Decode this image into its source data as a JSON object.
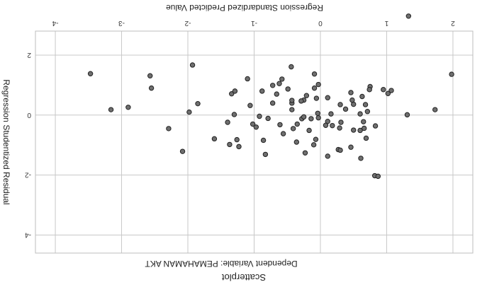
{
  "chart_data": {
    "type": "scatter",
    "title": "Scatterplot",
    "subtitle": "Dependent Variable: PEMAHAMAN AKT",
    "xlabel": "Regression Standardized Predicted Value",
    "ylabel": "Regression Studentized Residual",
    "xlim": [
      -4.3,
      2.3
    ],
    "ylim": [
      -4.6,
      2.8
    ],
    "xticks": [
      -4,
      -3,
      -2,
      -1,
      0,
      1,
      2
    ],
    "yticks": [
      -4,
      -2,
      0,
      2
    ],
    "xtick_labels": [
      "-4",
      "-3",
      "-2",
      "-1",
      "0",
      "1",
      "2"
    ],
    "ytick_labels": [
      "-4",
      "-2",
      "0",
      "2"
    ],
    "grid": true,
    "points": [
      {
        "x": 1.98,
        "y": 1.36
      },
      {
        "x": 1.73,
        "y": 0.18
      },
      {
        "x": 1.02,
        "y": 0.72
      },
      {
        "x": 0.75,
        "y": 0.95
      },
      {
        "x": 0.74,
        "y": 0.85
      },
      {
        "x": 0.27,
        "y": -1.15
      },
      {
        "x": -0.43,
        "y": 0.18
      },
      {
        "x": 0.5,
        "y": 0.36
      },
      {
        "x": -0.28,
        "y": -0.12
      },
      {
        "x": 0.83,
        "y": -0.36
      },
      {
        "x": -0.21,
        "y": 0.65
      },
      {
        "x": 0.11,
        "y": -1.37
      },
      {
        "x": 0.61,
        "y": -1.44
      },
      {
        "x": 0.31,
        "y": -0.24
      },
      {
        "x": 0.6,
        "y": -0.51
      },
      {
        "x": 0.46,
        "y": -1.07
      },
      {
        "x": 0.82,
        "y": -2.02
      },
      {
        "x": -0.25,
        "y": -0.06
      },
      {
        "x": 0.16,
        "y": 0.04
      },
      {
        "x": -0.03,
        "y": -0.09
      },
      {
        "x": -0.09,
        "y": 1.37
      },
      {
        "x": -0.1,
        "y": -0.99
      },
      {
        "x": 0.3,
        "y": -1.17
      },
      {
        "x": 0.87,
        "y": -2.04
      },
      {
        "x": 0.5,
        "y": -0.5
      },
      {
        "x": 0.38,
        "y": 0.2
      },
      {
        "x": -0.35,
        "y": -0.3
      },
      {
        "x": 0.66,
        "y": -0.44
      },
      {
        "x": 0.71,
        "y": 0.12
      },
      {
        "x": 0.6,
        "y": 0.04
      },
      {
        "x": -0.92,
        "y": -0.04
      },
      {
        "x": -1.02,
        "y": -0.3
      },
      {
        "x": -1.06,
        "y": 0.32
      },
      {
        "x": -1.23,
        "y": -1.05
      },
      {
        "x": -0.36,
        "y": -0.9
      },
      {
        "x": -0.17,
        "y": -0.51
      },
      {
        "x": -0.66,
        "y": 0.7
      },
      {
        "x": -0.88,
        "y": 0.8
      },
      {
        "x": -0.86,
        "y": -0.84
      },
      {
        "x": 0.69,
        "y": -0.77
      },
      {
        "x": -0.97,
        "y": -0.4
      },
      {
        "x": 0.63,
        "y": 0.62
      },
      {
        "x": 0.95,
        "y": 0.85
      },
      {
        "x": -0.23,
        "y": -1.26
      },
      {
        "x": -0.04,
        "y": 0.06
      },
      {
        "x": -0.14,
        "y": -0.12
      },
      {
        "x": -0.03,
        "y": 1.02
      },
      {
        "x": -0.61,
        "y": -0.32
      },
      {
        "x": 0.48,
        "y": 0.5
      },
      {
        "x": 0.65,
        "y": -0.22
      },
      {
        "x": 0.29,
        "y": -0.43
      },
      {
        "x": 0.11,
        "y": -0.21
      },
      {
        "x": 1.07,
        "y": 0.82
      },
      {
        "x": -0.43,
        "y": 0.4
      },
      {
        "x": 0.3,
        "y": 0.35
      },
      {
        "x": -0.25,
        "y": 0.5
      },
      {
        "x": -0.07,
        "y": -0.81
      },
      {
        "x": -0.41,
        "y": -0.45
      },
      {
        "x": 0.68,
        "y": 0.35
      },
      {
        "x": -0.09,
        "y": 0.9
      },
      {
        "x": 0.08,
        "y": -0.34
      },
      {
        "x": -0.72,
        "y": 0.4
      },
      {
        "x": -1.26,
        "y": -0.82
      },
      {
        "x": -2.08,
        "y": -1.21
      },
      {
        "x": -0.06,
        "y": 0.56
      },
      {
        "x": -1.1,
        "y": 1.21
      },
      {
        "x": 0.11,
        "y": 0.58
      },
      {
        "x": -0.56,
        "y": -0.62
      },
      {
        "x": 1.31,
        "y": 0.01
      },
      {
        "x": 0.18,
        "y": -0.35
      },
      {
        "x": -0.29,
        "y": 0.47
      },
      {
        "x": 0.46,
        "y": 0.75
      },
      {
        "x": -1.3,
        "y": 0.02
      },
      {
        "x": -0.43,
        "y": 0.49
      },
      {
        "x": -0.72,
        "y": 0.99
      },
      {
        "x": -1.34,
        "y": 0.71
      },
      {
        "x": -1.29,
        "y": 0.8
      },
      {
        "x": -1.37,
        "y": -0.98
      },
      {
        "x": -1.98,
        "y": 0.1
      },
      {
        "x": -2.9,
        "y": 0.26
      },
      {
        "x": -2.55,
        "y": 0.9
      },
      {
        "x": -2.57,
        "y": 1.31
      },
      {
        "x": -2.29,
        "y": -0.45
      },
      {
        "x": -3.16,
        "y": 0.18
      },
      {
        "x": -3.47,
        "y": 1.38
      },
      {
        "x": -1.85,
        "y": 0.38
      },
      {
        "x": -1.6,
        "y": -0.79
      },
      {
        "x": -1.93,
        "y": 1.67
      },
      {
        "x": -1.4,
        "y": -0.24
      },
      {
        "x": -0.83,
        "y": -1.31
      },
      {
        "x": -0.79,
        "y": -0.11
      },
      {
        "x": -0.62,
        "y": 1.05
      },
      {
        "x": -0.44,
        "y": 1.61
      },
      {
        "x": -0.58,
        "y": 1.2
      },
      {
        "x": -0.49,
        "y": 0.87
      },
      {
        "x": 1.33,
        "y": 3.3
      }
    ]
  }
}
